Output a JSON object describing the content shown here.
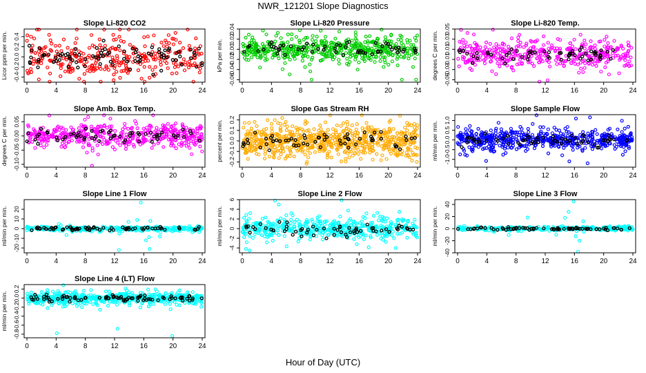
{
  "page": {
    "title": "NWR_121201  Slope Diagnostics",
    "xlabel": "Hour of Day (UTC)"
  },
  "chart_data": [
    {
      "type": "scatter",
      "title": "Slope Li-820 CO2",
      "ylabel": "Licor ppm per min.",
      "xlim": [
        0,
        24
      ],
      "xticks": [
        0,
        4,
        8,
        12,
        16,
        20,
        24
      ],
      "ylim": [
        -0.5,
        0.55
      ],
      "yticks": [
        -0.4,
        -0.2,
        0.0,
        0.2,
        0.4
      ],
      "ytick_labels": [
        "-0.4",
        "-0.2",
        "0.0",
        "0.2",
        "0.4"
      ],
      "spread": 0.2,
      "outlier_spread": 0.4,
      "bg_color": "#ff0000",
      "fg_color": "#000000",
      "bg_count": 330,
      "fg_count": 90,
      "outliers": [],
      "seed": 11
    },
    {
      "type": "scatter",
      "title": "Slope Li-820 Pressure",
      "ylabel": "kPa per min.",
      "xlim": [
        0,
        24
      ],
      "xticks": [
        0,
        4,
        8,
        12,
        16,
        20,
        24
      ],
      "ylim": [
        -0.065,
        0.04
      ],
      "yticks": [
        -0.06,
        -0.04,
        -0.02,
        0.0,
        0.02,
        0.04
      ],
      "ytick_labels": [
        "-0.06",
        "-0.04",
        "-0.02",
        "0.00",
        "0.02",
        "0.04"
      ],
      "spread": 0.012,
      "outlier_spread": 0.03,
      "bg_color": "#00cc00",
      "fg_color": "#000000",
      "bg_count": 520,
      "fg_count": 60,
      "outliers": [
        [
          9.5,
          -0.06
        ],
        [
          23.8,
          -0.06
        ],
        [
          8.6,
          -0.035
        ],
        [
          15.8,
          -0.04
        ]
      ],
      "seed": 23
    },
    {
      "type": "scatter",
      "title": "Slope Li-820 Temp.",
      "ylabel": "degrees C per min.",
      "xlim": [
        0,
        24
      ],
      "xticks": [
        0,
        4,
        8,
        12,
        16,
        20,
        24
      ],
      "ylim": [
        -0.055,
        0.05
      ],
      "yticks": [
        -0.05,
        -0.03,
        -0.01,
        0.01,
        0.03,
        0.05
      ],
      "ytick_labels": [
        "-0.05",
        "-0.03",
        "-0.01",
        "0.01",
        "0.03",
        "0.05"
      ],
      "spread": 0.014,
      "outlier_spread": 0.03,
      "bg_color": "#ff00ff",
      "fg_color": "#000000",
      "bg_count": 420,
      "fg_count": 60,
      "outliers": [],
      "seed": 37
    },
    {
      "type": "scatter",
      "title": "Slope Amb. Box Temp.",
      "ylabel": "degrees C per min.",
      "xlim": [
        0,
        24
      ],
      "xticks": [
        0,
        4,
        8,
        12,
        16,
        20,
        24
      ],
      "ylim": [
        -0.11,
        0.075
      ],
      "yticks": [
        -0.1,
        -0.05,
        0.0,
        0.05
      ],
      "ytick_labels": [
        "-0.10",
        "-0.05",
        "0.00",
        "0.05"
      ],
      "spread": 0.02,
      "outlier_spread": 0.045,
      "bg_color": "#ff00ff",
      "fg_color": "#000000",
      "bg_count": 460,
      "fg_count": 60,
      "outliers": [],
      "seed": 41
    },
    {
      "type": "scatter",
      "title": "Slope Gas Stream RH",
      "ylabel": "percent per min.",
      "xlim": [
        0,
        24
      ],
      "xticks": [
        0,
        4,
        8,
        12,
        16,
        20,
        24
      ],
      "ylim": [
        -0.25,
        0.25
      ],
      "yticks": [
        -0.2,
        -0.1,
        0.0,
        0.1,
        0.2
      ],
      "ytick_labels": [
        "-0.2",
        "-0.1",
        "0.0",
        "0.1",
        "0.2"
      ],
      "spread": 0.08,
      "outlier_spread": 0.13,
      "bg_color": "#ffaa00",
      "fg_color": "#000000",
      "bg_count": 700,
      "fg_count": 60,
      "outliers": [
        [
          21.6,
          0.24
        ],
        [
          23.9,
          -0.2
        ]
      ],
      "seed": 53
    },
    {
      "type": "scatter",
      "title": "Slope Sample Flow",
      "ylabel": "ml/min per min.",
      "xlim": [
        0,
        24
      ],
      "xticks": [
        0,
        4,
        8,
        12,
        16,
        20,
        24
      ],
      "ylim": [
        -1.4,
        1.3
      ],
      "yticks": [
        -1.0,
        -0.5,
        0.0,
        0.5,
        1.0
      ],
      "ytick_labels": [
        "-1.0",
        "-0.5",
        "0.0",
        "0.5",
        "1.0"
      ],
      "spread": 0.25,
      "outlier_spread": 0.6,
      "bg_color": "#0000ff",
      "fg_color": "#000000",
      "bg_count": 560,
      "fg_count": 60,
      "outliers": [
        [
          16.2,
          1.1
        ],
        [
          17.8,
          -1.2
        ],
        [
          15.3,
          -1.1
        ]
      ],
      "seed": 67
    },
    {
      "type": "scatter",
      "title": "Slope Line 1 Flow",
      "ylabel": "ml/min per min.",
      "xlim": [
        0,
        24
      ],
      "xticks": [
        0,
        4,
        8,
        12,
        16,
        20,
        24
      ],
      "ylim": [
        -25,
        30
      ],
      "yticks": [
        -20,
        -10,
        0,
        10,
        20
      ],
      "ytick_labels": [
        "-20",
        "-10",
        "0",
        "10",
        "20"
      ],
      "spread": 1.2,
      "outlier_spread": 4,
      "bg_color": "#00ffff",
      "fg_color": "#000000",
      "bg_count": 300,
      "fg_count": 70,
      "outliers": [
        [
          15.6,
          27
        ],
        [
          16.8,
          -21
        ],
        [
          12.6,
          -22
        ],
        [
          16.3,
          -12
        ],
        [
          15.1,
          9
        ],
        [
          13.9,
          7
        ],
        [
          16.9,
          8
        ],
        [
          18.2,
          -8
        ]
      ],
      "seed": 71
    },
    {
      "type": "scatter",
      "title": "Slope Line 2 Flow",
      "ylabel": "ml/min per min.",
      "xlim": [
        0,
        24
      ],
      "xticks": [
        0,
        4,
        8,
        12,
        16,
        20,
        24
      ],
      "ylim": [
        -5,
        6
      ],
      "yticks": [
        -4,
        -2,
        0,
        2,
        4,
        6
      ],
      "ytick_labels": [
        "-4",
        "-2",
        "0",
        "2",
        "4",
        "6"
      ],
      "spread": 1.1,
      "outlier_spread": 1.9,
      "bg_color": "#00ffff",
      "fg_color": "#000000",
      "bg_count": 470,
      "fg_count": 60,
      "outliers": [
        [
          4.5,
          5.8
        ],
        [
          0.5,
          -4.2
        ],
        [
          1.0,
          -4.5
        ],
        [
          21.0,
          -4.0
        ],
        [
          5.0,
          5.0
        ]
      ],
      "seed": 83
    },
    {
      "type": "scatter",
      "title": "Slope Line 3 Flow",
      "ylabel": "ml/min per min.",
      "xlim": [
        0,
        24
      ],
      "xticks": [
        0,
        4,
        8,
        12,
        16,
        20,
        24
      ],
      "ylim": [
        -40,
        48
      ],
      "yticks": [
        -40,
        -20,
        0,
        20,
        40
      ],
      "ytick_labels": [
        "-40",
        "-20",
        "0",
        "20",
        "40"
      ],
      "spread": 1.8,
      "outlier_spread": 6,
      "bg_color": "#00ffff",
      "fg_color": "#000000",
      "bg_count": 300,
      "fg_count": 70,
      "outliers": [
        [
          15.9,
          45
        ],
        [
          16.5,
          -38
        ],
        [
          15.2,
          28
        ],
        [
          14.7,
          18
        ],
        [
          16.7,
          -20
        ],
        [
          13.5,
          -10
        ],
        [
          17.2,
          12
        ]
      ],
      "seed": 97
    },
    {
      "type": "scatter",
      "title": "Slope Line 4 (LT) Flow",
      "ylabel": "ml/min per min.",
      "xlim": [
        0,
        24
      ],
      "xticks": [
        0,
        4,
        8,
        12,
        16,
        20,
        24
      ],
      "ylim": [
        -0.88,
        0.3
      ],
      "yticks": [
        -0.8,
        -0.6,
        -0.4,
        -0.2,
        0.0,
        0.2
      ],
      "ytick_labels": [
        "-0.8",
        "-0.6",
        "-0.4",
        "-0.2",
        "0.0",
        "0.2"
      ],
      "spread": 0.06,
      "outlier_spread": 0.15,
      "bg_color": "#00ffff",
      "fg_color": "#000000",
      "bg_count": 560,
      "fg_count": 80,
      "outliers": [
        [
          4.1,
          -0.78
        ],
        [
          12.4,
          -0.68
        ],
        [
          19.9,
          -0.84
        ]
      ],
      "seed": 101
    }
  ]
}
